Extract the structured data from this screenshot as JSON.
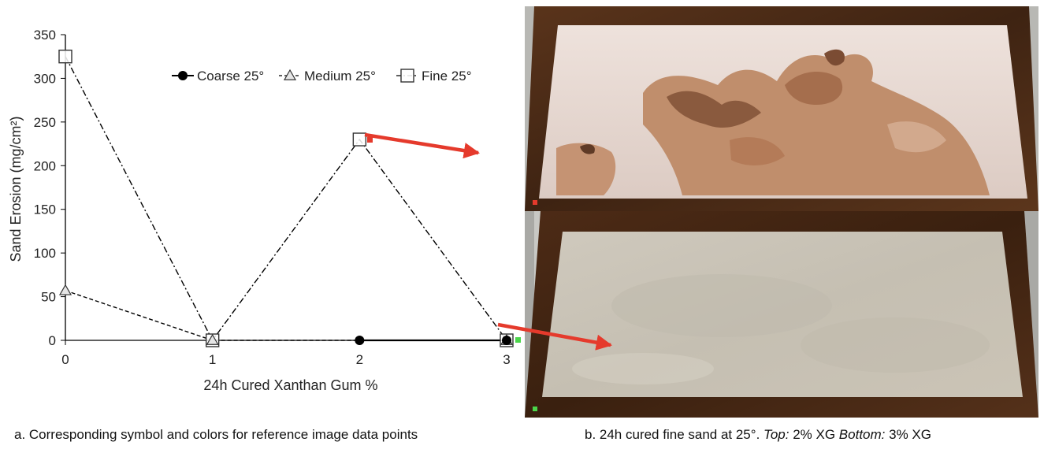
{
  "chart_data": {
    "type": "line",
    "xlabel": "24h Cured Xanthan Gum %",
    "ylabel": "Sand Erosion (mg/cm²)",
    "x": [
      0,
      1,
      2,
      3
    ],
    "xlim": [
      0,
      3
    ],
    "ylim": [
      0,
      350
    ],
    "xticks": [
      "0",
      "1",
      "2",
      "3"
    ],
    "yticks": [
      "0",
      "50",
      "100",
      "150",
      "200",
      "250",
      "300",
      "350"
    ],
    "grid": false,
    "legend_position": "top",
    "series": [
      {
        "name": "Coarse 25°",
        "marker": "circle-filled",
        "line": "solid",
        "points": [
          {
            "x": 2,
            "y": 0
          },
          {
            "x": 3,
            "y": 0
          }
        ]
      },
      {
        "name": "Medium 25°",
        "marker": "triangle-open",
        "line": "dashed",
        "points": [
          {
            "x": 0,
            "y": 57
          },
          {
            "x": 1,
            "y": 0
          },
          {
            "x": 3,
            "y": 0
          }
        ]
      },
      {
        "name": "Fine 25°",
        "marker": "square-open",
        "line": "dash-dot",
        "points": [
          {
            "x": 0,
            "y": 325
          },
          {
            "x": 1,
            "y": 0
          },
          {
            "x": 2,
            "y": 230
          },
          {
            "x": 3,
            "y": 0
          }
        ]
      }
    ],
    "reference_markers": [
      {
        "x": 2,
        "y": 230,
        "color": "#e53a2c",
        "points_to": "top_photo"
      },
      {
        "x": 3,
        "y": 0,
        "color": "#4bd64b",
        "points_to": "bottom_photo"
      }
    ]
  },
  "captions": {
    "a": "a. Corresponding symbol and colors for reference image data points",
    "b_prefix": "b. 24h cured fine sand at 25°. ",
    "b_top_label": "Top:",
    "b_top_value": " 2% XG ",
    "b_bottom_label": "Bottom:",
    "b_bottom_value": " 3% XG"
  },
  "colors": {
    "arrow": "#e53a2c",
    "marker_red": "#e53a2c",
    "marker_green": "#4bd64b",
    "frame_wood": "#4a2a14",
    "sand_fine_dry": "#e6d8d2",
    "sand_eroded": "#b9825c",
    "sand_bottom": "#c9c3b6"
  }
}
